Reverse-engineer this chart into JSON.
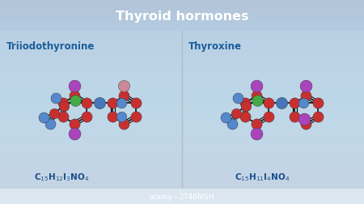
{
  "title": "Thyroid hormones",
  "title_bg_top": "#1a5e8a",
  "title_bg_bot": "#1a7aaa",
  "title_color": "white",
  "bg_top": "#d8e4ee",
  "bg_bot": "#c8d8e8",
  "divider_color": "#b0bcc8",
  "label_color": "#1a5e9a",
  "formula_color": "#1a4e8a",
  "footer_text": "alamy - 2T46NGH",
  "footer_bg": "#2c3e50",
  "footer_color": "white",
  "left_label": "Triiodothyronine",
  "right_label": "Thyroxine",
  "atom_C": "#c83030",
  "atom_N": "#4477bb",
  "atom_I": "#aa44bb",
  "atom_Cl": "#44aa44",
  "atom_H": "#5588cc",
  "atom_I3": "#cc8899",
  "bond_color": "#111111",
  "bond_lw": 1.2
}
